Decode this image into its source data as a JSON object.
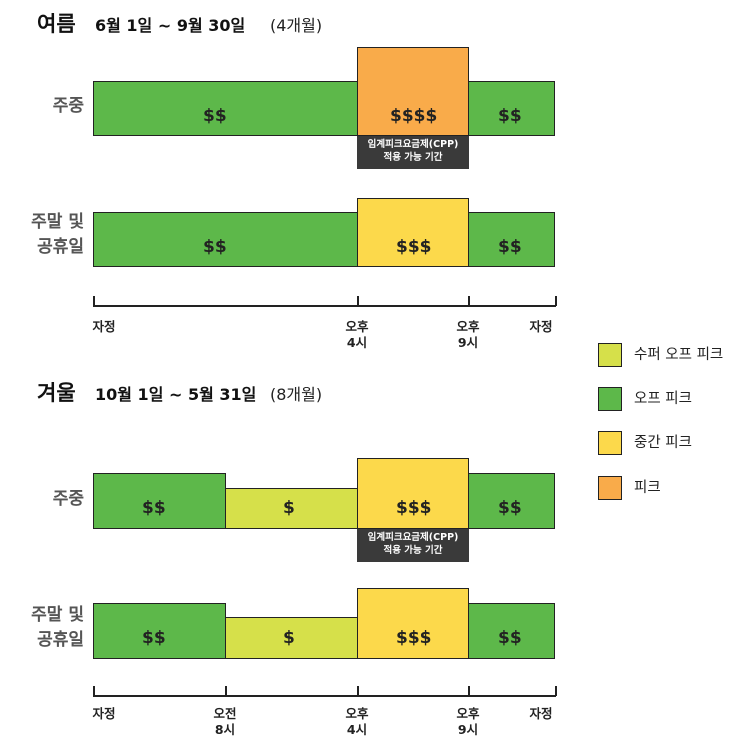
{
  "colors": {
    "super_off_peak": "#d6e04a",
    "off_peak": "#5db84a",
    "mid_peak": "#fcd94b",
    "peak": "#f9ab4a"
  },
  "summer": {
    "title": "여름",
    "range": "6월 1일 ~ 9월 30일",
    "duration": "(4개월)",
    "weekday": {
      "label": "주중",
      "prices": [
        "$$",
        "$$$$",
        "$$"
      ],
      "cpp": [
        "임계피크요금제(CPP)",
        "적용 가능 기간"
      ]
    },
    "weekend": {
      "label": [
        "주말 및",
        "공휴일"
      ],
      "prices": [
        "$$",
        "$$$",
        "$$"
      ]
    },
    "axis": [
      {
        "lines": [
          "자정"
        ]
      },
      {
        "lines": [
          "오후",
          "4시"
        ]
      },
      {
        "lines": [
          "오후",
          "9시"
        ]
      },
      {
        "lines": [
          "자정"
        ]
      }
    ]
  },
  "winter": {
    "title": "겨울",
    "range": "10월 1일 ~ 5월 31일",
    "duration": "(8개월)",
    "weekday": {
      "label": "주중",
      "prices": [
        "$$",
        "$",
        "$$$",
        "$$"
      ],
      "cpp": [
        "임계피크요금제(CPP)",
        "적용 가능 기간"
      ]
    },
    "weekend": {
      "label": [
        "주말 및",
        "공휴일"
      ],
      "prices": [
        "$$",
        "$",
        "$$$",
        "$$"
      ]
    },
    "axis": [
      {
        "lines": [
          "자정"
        ]
      },
      {
        "lines": [
          "오전",
          "8시"
        ]
      },
      {
        "lines": [
          "오후",
          "4시"
        ]
      },
      {
        "lines": [
          "오후",
          "9시"
        ]
      },
      {
        "lines": [
          "자정"
        ]
      }
    ]
  },
  "legend": [
    {
      "label": "수퍼 오프 피크",
      "color_key": "super_off_peak"
    },
    {
      "label": "오프 피크",
      "color_key": "off_peak"
    },
    {
      "label": "중간 피크",
      "color_key": "mid_peak"
    },
    {
      "label": "피크",
      "color_key": "peak"
    }
  ]
}
